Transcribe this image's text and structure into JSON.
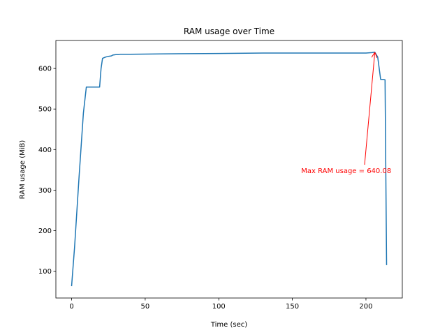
{
  "chart_data": {
    "type": "line",
    "title": "RAM usage over Time",
    "xlabel": "Time (sec)",
    "ylabel": "RAM usage (MiB)",
    "xlim": [
      -10.7,
      224.7
    ],
    "ylim": [
      34.0,
      669.0
    ],
    "xticks": [
      0,
      50,
      100,
      150,
      200
    ],
    "yticks": [
      100,
      200,
      300,
      400,
      500,
      600
    ],
    "grid": false,
    "legend": "none",
    "series": [
      {
        "color": "#1f77b4",
        "x": [
          0,
          2,
          5,
          8,
          10,
          13,
          16,
          19,
          20,
          21,
          23,
          25,
          27,
          28,
          30,
          32,
          33,
          40,
          60,
          100,
          130,
          160,
          190,
          200,
          204,
          206,
          208,
          210,
          212,
          213,
          214
        ],
        "y": [
          63,
          160,
          330,
          490,
          554,
          554,
          554,
          554,
          600,
          625,
          628,
          630,
          631,
          633,
          634,
          634,
          635,
          635,
          636,
          637,
          638,
          638,
          638,
          638,
          639,
          640.08,
          628,
          573,
          573,
          572,
          115
        ]
      }
    ],
    "annotations": [
      {
        "text": "Max RAM usage = 640.08",
        "color": "#ff0000",
        "point": [
          206,
          640.08
        ],
        "text_pos": [
          156,
          342
        ]
      }
    ]
  }
}
